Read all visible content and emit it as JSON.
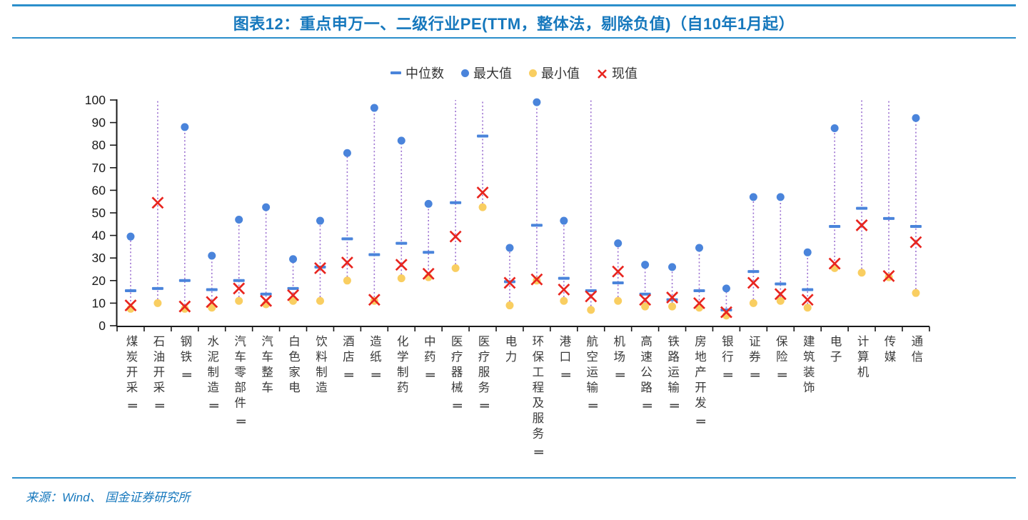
{
  "header": {
    "title": "图表12：重点申万一、二级行业PE(TTM，整体法，剔除负值)（自10年1月起）"
  },
  "footer": {
    "source": "来源：Wind、 国金证券研究所"
  },
  "chart_data": {
    "type": "scatter",
    "subtype": "range-dot-plot",
    "title": "图表12：重点申万一、二级行业PE(TTM，整体法，剔除负值)（自10年1月起）",
    "xlabel": "",
    "ylabel": "",
    "ylim": [
      0,
      100
    ],
    "yticks": [
      0,
      10,
      20,
      30,
      40,
      50,
      60,
      70,
      80,
      90,
      100
    ],
    "grid": false,
    "legend_position": "top-center",
    "legend": [
      {
        "name": "中位数",
        "marker": "dash",
        "color": "#4a84db"
      },
      {
        "name": "最大值",
        "marker": "dot",
        "color": "#4a84db"
      },
      {
        "name": "最小值",
        "marker": "dot",
        "color": "#f9ce61"
      },
      {
        "name": "现值",
        "marker": "x",
        "color": "#e8251f"
      }
    ],
    "categories": [
      "煤炭开采Ⅱ",
      "石油开采Ⅱ",
      "钢铁Ⅱ",
      "水泥制造Ⅱ",
      "汽车零部件Ⅱ",
      "汽车整车",
      "白色家电",
      "饮料制造",
      "酒店Ⅱ",
      "造纸Ⅱ",
      "化学制药",
      "中药Ⅱ",
      "医疗器械Ⅱ",
      "医疗服务Ⅱ",
      "电力",
      "环保工程及服务Ⅱ",
      "港口Ⅱ",
      "航空运输Ⅱ",
      "机场Ⅱ",
      "高速公路Ⅱ",
      "铁路运输Ⅱ",
      "房地产开发Ⅱ",
      "银行Ⅱ",
      "证券Ⅱ",
      "保险Ⅱ",
      "建筑装饰",
      "电子",
      "计算机",
      "传媒",
      "通信"
    ],
    "series": [
      {
        "name": "中位数",
        "marker": "dash",
        "values": [
          15.5,
          16.5,
          20,
          16,
          20,
          14,
          16.5,
          26,
          38.5,
          31.5,
          36.5,
          32.5,
          54.5,
          84,
          19.5,
          44.5,
          21,
          15.5,
          19,
          14,
          11.5,
          15.5,
          7,
          24,
          18.5,
          16,
          44,
          52,
          47.5,
          44
        ]
      },
      {
        "name": "最大值",
        "marker": "dot",
        "values": [
          39.5,
          null,
          88,
          31,
          47,
          52.5,
          29.5,
          46.5,
          76.5,
          96.5,
          82,
          54,
          null,
          null,
          34.5,
          99,
          46.5,
          null,
          36.5,
          27,
          26,
          34.5,
          16.5,
          57,
          57,
          32.5,
          87.5,
          null,
          null,
          92
        ]
      },
      {
        "name": "最小值",
        "marker": "dot",
        "values": [
          7.5,
          10,
          7.5,
          8,
          11,
          9.5,
          11,
          11,
          20,
          11,
          21,
          21.5,
          25.5,
          52.5,
          9,
          20,
          11,
          7,
          11,
          8.5,
          8.5,
          8,
          4.5,
          10,
          11,
          8,
          25.5,
          23.5,
          21.5,
          14.5
        ]
      },
      {
        "name": "现值",
        "marker": "x",
        "values": [
          9,
          54.5,
          8.5,
          10.5,
          16.5,
          11,
          13.5,
          25.5,
          28,
          11.5,
          27,
          23,
          39.5,
          59,
          19,
          20.5,
          16,
          13,
          24,
          11.5,
          12.5,
          10,
          6,
          19,
          14,
          11.5,
          27.5,
          44.5,
          22,
          37
        ]
      }
    ],
    "max_clipped_categories": [
      "石油开采Ⅱ",
      "医疗器械Ⅱ",
      "医疗服务Ⅱ",
      "航空运输Ⅱ",
      "计算机",
      "传媒"
    ],
    "note_clipped": "null 最大值 = 虚线延伸超出坐标轴顶端 (>100)",
    "colors": {
      "blue": "#4a84db",
      "yellow": "#f9ce61",
      "red": "#e8251f",
      "range_line": "#9b6fd0",
      "axis": "#1a1a1a",
      "title_blue": "#1678bd",
      "rule_blue": "#2b8fcb"
    }
  }
}
